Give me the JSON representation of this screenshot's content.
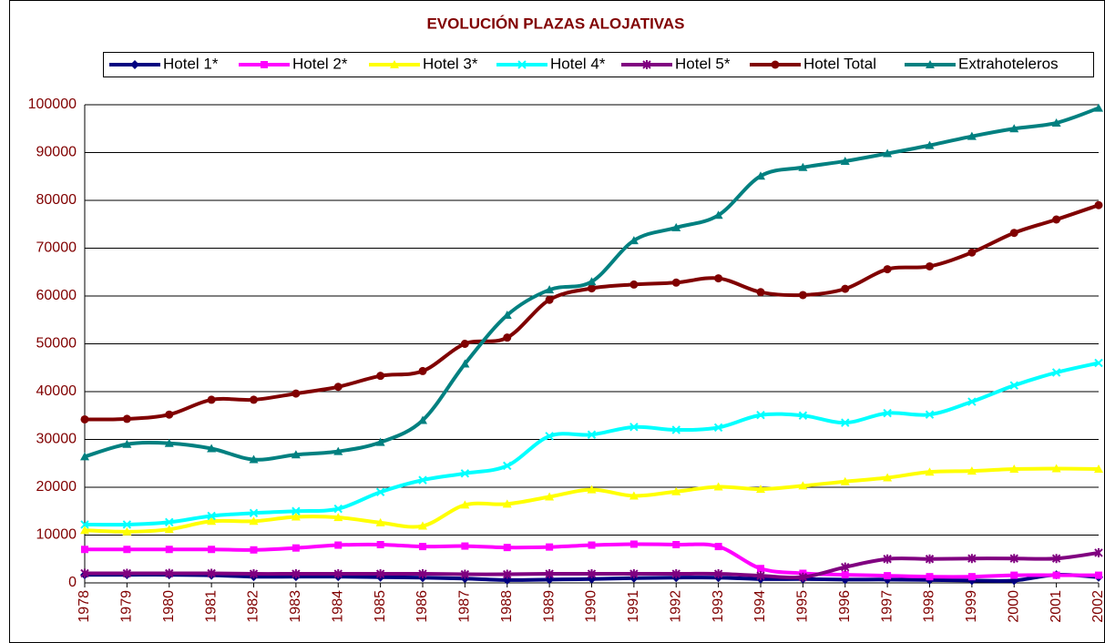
{
  "chart_data": {
    "type": "line",
    "title": "EVOLUCIÓN PLAZAS ALOJATIVAS",
    "categories": [
      "1978",
      "1979",
      "1980",
      "1981",
      "1982",
      "1983",
      "1984",
      "1985",
      "1986",
      "1987",
      "1988",
      "1989",
      "1990",
      "1991",
      "1992",
      "1993",
      "1994",
      "1995",
      "1996",
      "1997",
      "1998",
      "1999",
      "2000",
      "2001",
      "2002"
    ],
    "series": [
      {
        "name": "Hotel 1*",
        "color": "#000080",
        "marker": "diamond",
        "values": [
          1700,
          1700,
          1700,
          1600,
          1300,
          1300,
          1300,
          1200,
          1100,
          900,
          600,
          700,
          800,
          1000,
          1100,
          1100,
          800,
          800,
          700,
          700,
          600,
          500,
          500,
          1700,
          1200
        ]
      },
      {
        "name": "Hotel 2*",
        "color": "#ff00ff",
        "marker": "square",
        "values": [
          7000,
          7000,
          7000,
          7000,
          6900,
          7300,
          7900,
          8000,
          7600,
          7700,
          7400,
          7500,
          7900,
          8100,
          8000,
          7600,
          3000,
          2000,
          1700,
          1500,
          1300,
          1300,
          1600,
          1600,
          1600
        ]
      },
      {
        "name": "Hotel 3*",
        "color": "#ffff00",
        "marker": "triangle",
        "values": [
          11000,
          10700,
          11200,
          12900,
          12900,
          13800,
          13700,
          12600,
          11900,
          16300,
          16500,
          18000,
          19500,
          18200,
          19100,
          20100,
          19600,
          20300,
          21200,
          22000,
          23200,
          23400,
          23800,
          23900,
          23800
        ]
      },
      {
        "name": "Hotel 4*",
        "color": "#00ffff",
        "marker": "x",
        "values": [
          12200,
          12200,
          12700,
          14000,
          14600,
          15000,
          15500,
          19000,
          21500,
          22900,
          24500,
          30700,
          31000,
          32600,
          32000,
          32500,
          35100,
          35000,
          33500,
          35500,
          35200,
          37900,
          41300,
          44000,
          46000
        ]
      },
      {
        "name": "Hotel 5*",
        "color": "#800080",
        "marker": "star",
        "values": [
          2000,
          2000,
          2000,
          2000,
          1900,
          1900,
          1900,
          1900,
          1900,
          1800,
          1800,
          1900,
          1900,
          1900,
          1900,
          1900,
          1500,
          1200,
          3300,
          5000,
          5000,
          5100,
          5100,
          5100,
          6300
        ]
      },
      {
        "name": "Hotel Total",
        "color": "#800000",
        "marker": "circle",
        "values": [
          34200,
          34300,
          35200,
          38300,
          38300,
          39600,
          41000,
          43300,
          44300,
          50000,
          51300,
          59200,
          61600,
          62400,
          62800,
          63700,
          60800,
          60200,
          61500,
          65600,
          66200,
          69100,
          73200,
          76000,
          79000
        ]
      },
      {
        "name": "Extrahoteleros",
        "color": "#008080",
        "marker": "triangle",
        "values": [
          26400,
          29000,
          29200,
          28100,
          25800,
          26800,
          27500,
          29400,
          34000,
          45800,
          56000,
          61300,
          63000,
          71600,
          74300,
          76900,
          85100,
          86900,
          88200,
          89800,
          91500,
          93400,
          95000,
          96200,
          99300
        ]
      }
    ],
    "ylim": [
      0,
      100000
    ],
    "yticks": [
      0,
      10000,
      20000,
      30000,
      40000,
      50000,
      60000,
      70000,
      80000,
      90000,
      100000
    ],
    "grid": true,
    "legend": "top"
  }
}
